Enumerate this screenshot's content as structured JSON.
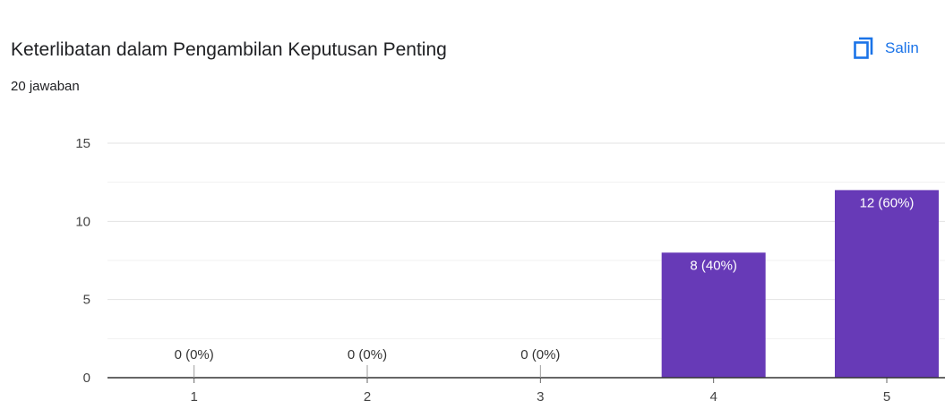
{
  "header": {
    "title": "Keterlibatan dalam Pengambilan Keputusan Penting",
    "subtitle": "20 jawaban",
    "copy_label": "Salin",
    "copy_icon": "copy-icon"
  },
  "colors": {
    "bar": "#673ab7",
    "accent": "#1a73e8",
    "grid": "#e0e0e0",
    "axis": "#333333"
  },
  "chart_data": {
    "type": "bar",
    "categories": [
      "1",
      "2",
      "3",
      "4",
      "5"
    ],
    "values": [
      0,
      0,
      0,
      8,
      12
    ],
    "data_labels": [
      "0 (0%)",
      "0 (0%)",
      "0 (0%)",
      "8 (40%)",
      "12 (60%)"
    ],
    "y_ticks": [
      "0",
      "5",
      "10",
      "15"
    ],
    "ylim": [
      0,
      15
    ],
    "grid": true,
    "legend": "none",
    "title": "Keterlibatan dalam Pengambilan Keputusan Penting",
    "xlabel": "",
    "ylabel": ""
  }
}
